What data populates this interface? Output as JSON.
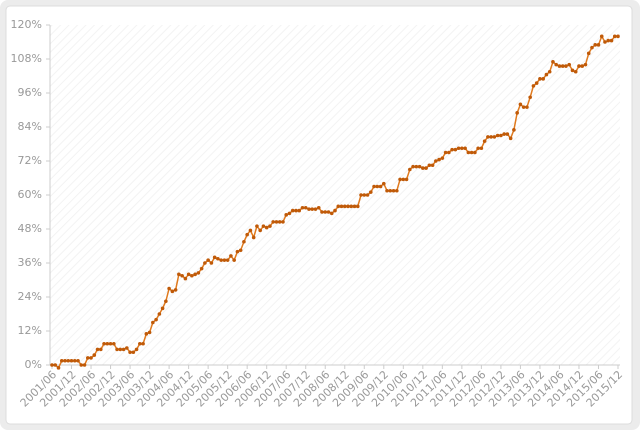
{
  "chart_data": {
    "type": "line",
    "categories": [
      "2001/06",
      null,
      null,
      null,
      null,
      null,
      "2001/12",
      null,
      null,
      null,
      null,
      null,
      "2002/06",
      null,
      null,
      null,
      null,
      null,
      "2002/12",
      null,
      null,
      null,
      null,
      null,
      "2003/06",
      null,
      null,
      null,
      null,
      null,
      "2003/12",
      null,
      null,
      null,
      null,
      null,
      "2004/06",
      null,
      null,
      null,
      null,
      null,
      "2004/12",
      null,
      null,
      null,
      null,
      null,
      "2005/06",
      null,
      null,
      null,
      null,
      null,
      "2005/12",
      null,
      null,
      null,
      null,
      null,
      "2006/06",
      null,
      null,
      null,
      null,
      null,
      "2006/12",
      null,
      null,
      null,
      null,
      null,
      "2007/06",
      null,
      null,
      null,
      null,
      null,
      "2007/12",
      null,
      null,
      null,
      null,
      null,
      "2008/06",
      null,
      null,
      null,
      null,
      null,
      "2008/12",
      null,
      null,
      null,
      null,
      null,
      "2009/06",
      null,
      null,
      null,
      null,
      null,
      "2009/12",
      null,
      null,
      null,
      null,
      null,
      "2010/06",
      null,
      null,
      null,
      null,
      null,
      "2010/12",
      null,
      null,
      null,
      null,
      null,
      "2011/06",
      null,
      null,
      null,
      null,
      null,
      "2011/12",
      null,
      null,
      null,
      null,
      null,
      "2012/06",
      null,
      null,
      null,
      null,
      null,
      "2012/12",
      null,
      null,
      null,
      null,
      null,
      "2013/06",
      null,
      null,
      null,
      null,
      null,
      "2013/12",
      null,
      null,
      null,
      null,
      null,
      "2014/06",
      null,
      null,
      null,
      null,
      null,
      "2014/12",
      null,
      null,
      null,
      null,
      null,
      "2015/06",
      null,
      null,
      null,
      null,
      null,
      "2015/12"
    ],
    "values": [
      0,
      0,
      -1,
      1.5,
      1.5,
      1.5,
      1.5,
      1.5,
      1.5,
      0,
      0,
      2.5,
      2.5,
      3.5,
      5.5,
      5.5,
      7.5,
      7.5,
      7.5,
      7.5,
      5.5,
      5.5,
      5.5,
      6,
      4.5,
      4.5,
      5.5,
      7.5,
      7.5,
      11,
      11.5,
      15,
      16,
      18,
      20,
      22.5,
      27,
      26,
      26.5,
      32,
      31.5,
      30.5,
      32,
      31.5,
      32,
      32.5,
      34,
      36,
      37,
      36,
      38,
      37.5,
      37,
      37,
      37,
      38.5,
      37,
      40,
      40.5,
      43.5,
      46,
      47.5,
      45,
      49,
      47.5,
      49,
      48.5,
      49,
      50.5,
      50.5,
      50.5,
      50.5,
      53,
      53.5,
      54.5,
      54.5,
      54.5,
      55.5,
      55.5,
      55,
      55,
      55,
      55.5,
      54,
      54,
      54,
      53.5,
      54.5,
      56,
      56,
      56,
      56,
      56,
      56,
      56,
      60,
      60,
      60,
      61,
      63,
      63,
      63,
      64,
      61.5,
      61.5,
      61.5,
      61.5,
      65.5,
      65.5,
      65.5,
      69,
      70,
      70,
      70,
      69.5,
      69.5,
      70.5,
      70.5,
      72,
      72.5,
      73,
      75,
      75,
      76,
      76,
      76.5,
      76.5,
      76.5,
      75,
      75,
      75,
      76.5,
      76.5,
      79,
      80.5,
      80.5,
      80.5,
      81,
      81,
      81.5,
      81.5,
      80,
      83,
      89,
      92,
      91,
      91,
      94.5,
      98.5,
      99.5,
      101,
      101,
      102.5,
      103.5,
      107,
      106,
      105.5,
      105.5,
      105.5,
      106,
      104,
      103.5,
      105.5,
      105.5,
      106,
      110,
      112,
      113,
      113,
      116,
      114,
      114.5,
      114.5,
      116,
      116
    ],
    "color": "#e07a1e",
    "ylim": [
      0,
      120
    ],
    "yticks": [
      {
        "value": 0,
        "label": "0%"
      },
      {
        "value": 12,
        "label": "12%"
      },
      {
        "value": 24,
        "label": "24%"
      },
      {
        "value": 36,
        "label": "36%"
      },
      {
        "value": 48,
        "label": "48%"
      },
      {
        "value": 60,
        "label": "60%"
      },
      {
        "value": 72,
        "label": "72%"
      },
      {
        "value": 84,
        "label": "84%"
      },
      {
        "value": 96,
        "label": "96%"
      },
      {
        "value": 108,
        "label": "108%"
      },
      {
        "value": 120,
        "label": "120%"
      }
    ],
    "grid": false
  }
}
